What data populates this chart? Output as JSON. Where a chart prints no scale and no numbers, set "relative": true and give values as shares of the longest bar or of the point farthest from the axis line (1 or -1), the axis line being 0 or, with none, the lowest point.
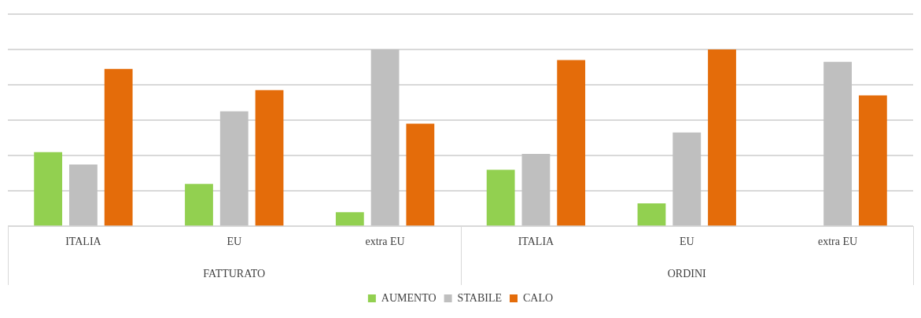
{
  "chart_data": {
    "type": "bar",
    "relative": true,
    "categories": [
      "ITALIA",
      "EU",
      "extra EU",
      "ITALIA",
      "EU",
      "extra EU"
    ],
    "annotations": [
      "FATTURATO",
      "ORDINI"
    ],
    "series": [
      {
        "name": "AUMENTO",
        "color": "#92d050",
        "values": [
          0.42,
          0.24,
          0.08,
          0.32,
          0.13,
          0
        ]
      },
      {
        "name": "STABILE",
        "color": "#bfbfbf",
        "values": [
          0.35,
          0.65,
          1,
          0.41,
          0.53,
          0.93
        ]
      },
      {
        "name": "CALO",
        "color": "#e46c0a",
        "values": [
          0.89,
          0.77,
          0.58,
          0.94,
          1,
          0.74
        ]
      }
    ],
    "grid": "y",
    "legend": "bottom"
  }
}
